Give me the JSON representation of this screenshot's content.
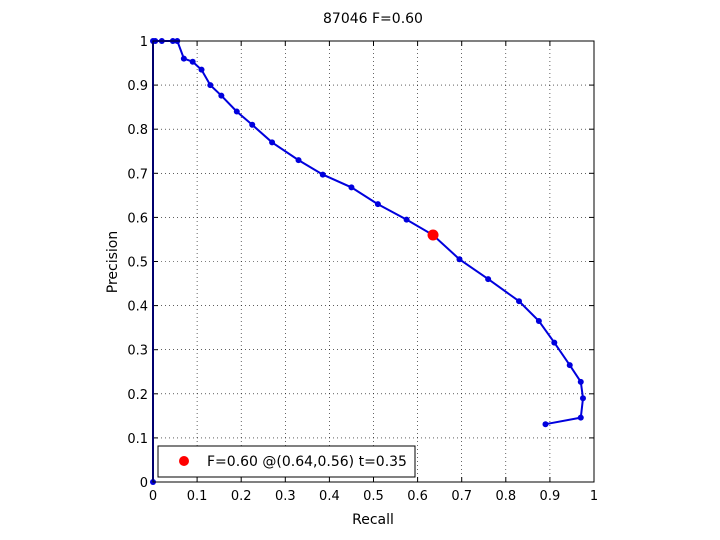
{
  "chart_data": {
    "type": "line",
    "title": "87046 F=0.60",
    "xlabel": "Recall",
    "ylabel": "Precision",
    "xlim": [
      0,
      1
    ],
    "ylim": [
      0,
      1
    ],
    "grid": true,
    "x_ticks": [
      "0",
      "0.1",
      "0.2",
      "0.3",
      "0.4",
      "0.5",
      "0.6",
      "0.7",
      "0.8",
      "0.9",
      "1"
    ],
    "y_ticks": [
      "0",
      "0.1",
      "0.2",
      "0.3",
      "0.4",
      "0.5",
      "0.6",
      "0.7",
      "0.8",
      "0.9",
      "1"
    ],
    "series": [
      {
        "color": "#0000dd",
        "points": [
          [
            0.0,
            0.0
          ],
          [
            0.0,
            1.0
          ],
          [
            0.005,
            1.0
          ],
          [
            0.02,
            1.0
          ],
          [
            0.045,
            1.0
          ],
          [
            0.055,
            1.0
          ],
          [
            0.07,
            0.96
          ],
          [
            0.09,
            0.953
          ],
          [
            0.11,
            0.935
          ],
          [
            0.13,
            0.9
          ],
          [
            0.155,
            0.876
          ],
          [
            0.19,
            0.84
          ],
          [
            0.225,
            0.81
          ],
          [
            0.27,
            0.77
          ],
          [
            0.33,
            0.73
          ],
          [
            0.385,
            0.697
          ],
          [
            0.45,
            0.668
          ],
          [
            0.51,
            0.63
          ],
          [
            0.575,
            0.595
          ],
          [
            0.635,
            0.56
          ],
          [
            0.695,
            0.505
          ],
          [
            0.76,
            0.46
          ],
          [
            0.83,
            0.41
          ],
          [
            0.875,
            0.365
          ],
          [
            0.91,
            0.316
          ],
          [
            0.945,
            0.265
          ],
          [
            0.97,
            0.227
          ],
          [
            0.975,
            0.19
          ],
          [
            0.97,
            0.146
          ],
          [
            0.89,
            0.131
          ]
        ]
      }
    ],
    "highlight_point": {
      "x": 0.635,
      "y": 0.56,
      "color": "#ff0000"
    },
    "legend": {
      "placement": "bottom-left",
      "entries": [
        {
          "label": "F=0.60 @(0.64,0.56) t=0.35",
          "color": "#ff0000"
        }
      ]
    }
  }
}
